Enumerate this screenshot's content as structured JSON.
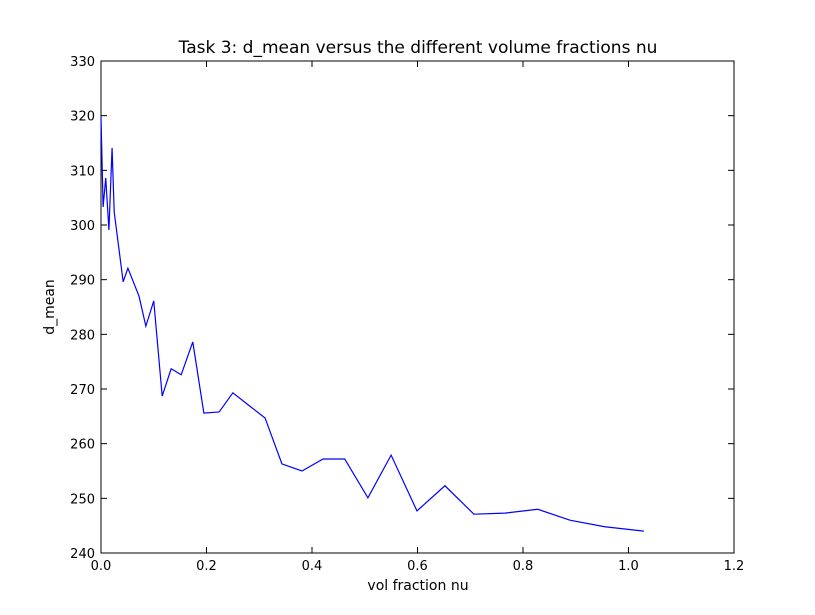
{
  "chart_data": {
    "type": "line",
    "title": "Task 3: d_mean versus the different volume fractions nu",
    "xlabel": "vol fraction nu",
    "ylabel": "d_mean",
    "x": [
      0,
      0.004,
      0.009,
      0.015,
      0.021,
      0.025,
      0.042,
      0.051,
      0.072,
      0.085,
      0.1,
      0.116,
      0.133,
      0.152,
      0.174,
      0.195,
      0.224,
      0.25,
      0.279,
      0.311,
      0.343,
      0.381,
      0.421,
      0.462,
      0.506,
      0.55,
      0.599,
      0.652,
      0.707,
      0.766,
      0.828,
      0.889,
      0.955,
      1.029
    ],
    "series": [
      {
        "color": "#0000ff",
        "values": [
          319.8,
          303.3,
          308.6,
          299.1,
          314.1,
          302.4,
          289.6,
          292.1,
          287.0,
          281.5,
          286.1,
          268.7,
          273.7,
          272.6,
          278.6,
          265.6,
          265.8,
          269.3,
          267.1,
          264.7,
          256.3,
          255.0,
          257.2,
          257.2,
          250.1,
          257.9,
          247.7,
          252.3,
          247.1,
          247.3,
          248.0,
          246.0,
          244.8,
          244.0
        ]
      }
    ],
    "xlim": [
      0,
      1.2
    ],
    "xticks": [
      {
        "value": 0,
        "label": "0.0"
      },
      0.2,
      0.4,
      0.6,
      0.8,
      {
        "value": 1,
        "label": "1.0"
      },
      1.2
    ],
    "ylim": [
      240,
      330
    ],
    "yticks": [
      240,
      250,
      260,
      270,
      280,
      290,
      300,
      310,
      320,
      330
    ],
    "grid": false
  }
}
